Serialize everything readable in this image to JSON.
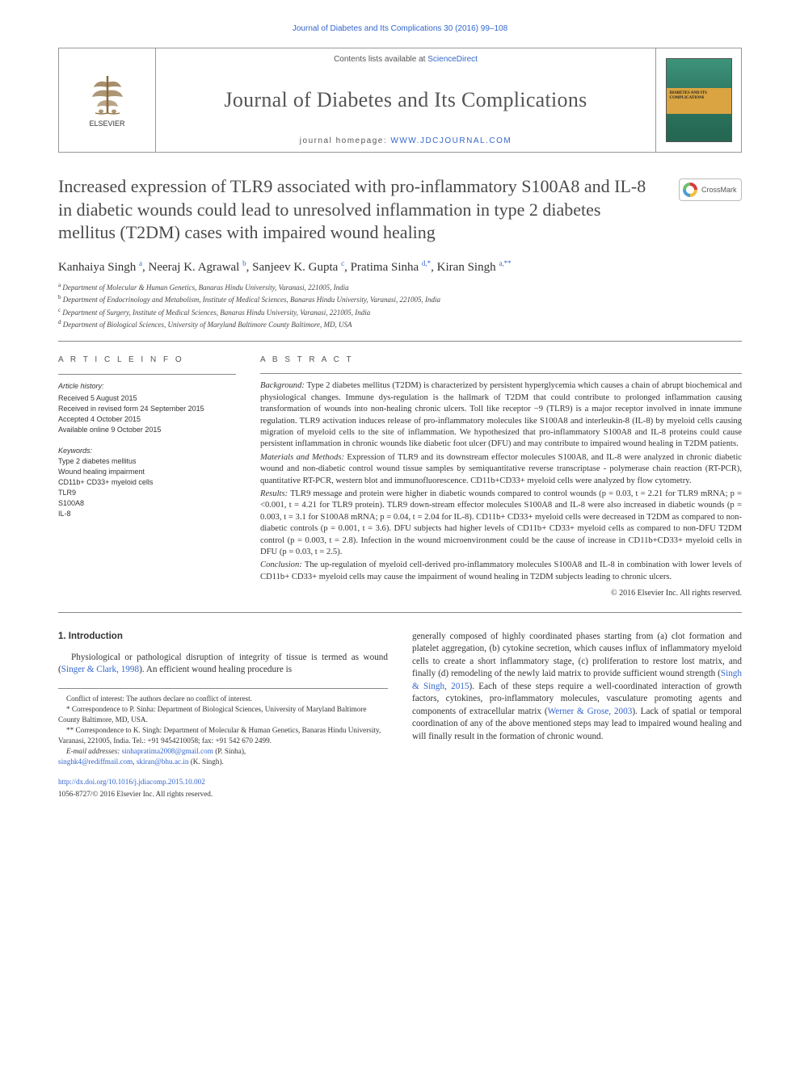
{
  "running_header": "Journal of Diabetes and Its Complications 30 (2016) 99–108",
  "masthead": {
    "contents_prefix": "Contents lists available at ",
    "contents_link": "ScienceDirect",
    "journal_name": "Journal of Diabetes and Its Complications",
    "homepage_prefix": "journal homepage: ",
    "homepage_link": "WWW.JDCJOURNAL.COM",
    "publisher": "ELSEVIER",
    "cover_title": "DIABETES AND ITS COMPLICATIONS"
  },
  "colors": {
    "link": "#3366cc",
    "text": "#333333",
    "title": "#4a4a4a",
    "rule": "#888888",
    "cover_bg_top": "#3d947a",
    "cover_band": "#d9a441"
  },
  "typography": {
    "body_font": "Georgia serif",
    "title_fontsize_pt": 17,
    "journal_name_fontsize_pt": 20,
    "abstract_fontsize_pt": 8,
    "body_fontsize_pt": 8.5
  },
  "crossmark_label": "CrossMark",
  "article": {
    "title": "Increased expression of TLR9 associated with pro-inflammatory S100A8 and IL-8 in diabetic wounds could lead to unresolved inflammation in type 2 diabetes mellitus (T2DM) cases with impaired wound healing",
    "authors_html": "Kanhaiya Singh <sup>a</sup>, Neeraj K. Agrawal <sup>b</sup>, Sanjeev K. Gupta <sup>c</sup>, Pratima Sinha <sup>d,*</sup>, Kiran Singh <sup>a,**</sup>",
    "affiliations": [
      {
        "tag": "a",
        "text": "Department of Molecular & Human Genetics, Banaras Hindu University, Varanasi, 221005, India"
      },
      {
        "tag": "b",
        "text": "Department of Endocrinology and Metabolism, Institute of Medical Sciences, Banaras Hindu University, Varanasi, 221005, India"
      },
      {
        "tag": "c",
        "text": "Department of Surgery, Institute of Medical Sciences, Banaras Hindu University, Varanasi, 221005, India"
      },
      {
        "tag": "d",
        "text": "Department of Biological Sciences, University of Maryland Baltimore County Baltimore, MD, USA"
      }
    ]
  },
  "article_info": {
    "header": "A R T I C L E   I N F O",
    "history_label": "Article history:",
    "history": [
      "Received 5 August 2015",
      "Received in revised form 24 September 2015",
      "Accepted 4 October 2015",
      "Available online 9 October 2015"
    ],
    "keywords_label": "Keywords:",
    "keywords": [
      "Type 2 diabetes mellitus",
      "Wound healing impairment",
      "CD11b+ CD33+ myeloid cells",
      "TLR9",
      "S100A8",
      "IL-8"
    ]
  },
  "abstract": {
    "header": "A B S T R A C T",
    "background_label": "Background:",
    "background": "Type 2 diabetes mellitus (T2DM) is characterized by persistent hyperglycemia which causes a chain of abrupt biochemical and physiological changes. Immune dys-regulation is the hallmark of T2DM that could contribute to prolonged inflammation causing transformation of wounds into non-healing chronic ulcers. Toll like receptor −9 (TLR9) is a major receptor involved in innate immune regulation. TLR9 activation induces release of pro-inflammatory molecules like S100A8 and interleukin-8 (IL-8) by myeloid cells causing migration of myeloid cells to the site of inflammation. We hypothesized that pro-inflammatory S100A8 and IL-8 proteins could cause persistent inflammation in chronic wounds like diabetic foot ulcer (DFU) and may contribute to impaired wound healing in T2DM patients.",
    "methods_label": "Materials and Methods:",
    "methods": "Expression of TLR9 and its downstream effector molecules S100A8, and IL-8 were analyzed in chronic diabetic wound and non-diabetic control wound tissue samples by semiquantitative reverse transcriptase - polymerase chain reaction (RT-PCR), quantitative RT-PCR, western blot and immunofluorescence. CD11b+CD33+ myeloid cells were analyzed by flow cytometry.",
    "results_label": "Results:",
    "results": "TLR9 message and protein were higher in diabetic wounds compared to control wounds (p = 0.03, t = 2.21 for TLR9 mRNA; p = <0.001, t = 4.21 for TLR9 protein). TLR9 down-stream effector molecules S100A8 and IL-8 were also increased in diabetic wounds (p = 0.003, t = 3.1 for S100A8 mRNA; p = 0.04, t = 2.04 for IL-8). CD11b+ CD33+ myeloid cells were decreased in T2DM as compared to non-diabetic controls (p = 0.001, t = 3.6). DFU subjects had higher levels of CD11b+ CD33+ myeloid cells as compared to non-DFU T2DM control (p = 0.003, t = 2.8). Infection in the wound microenvironment could be the cause of increase in CD11b+CD33+ myeloid cells in DFU (p = 0.03, t = 2.5).",
    "conclusion_label": "Conclusion:",
    "conclusion": "The up-regulation of myeloid cell-derived pro-inflammatory molecules S100A8 and IL-8 in combination with lower levels of CD11b+ CD33+ myeloid cells may cause the impairment of wound healing in T2DM subjects leading to chronic ulcers.",
    "copyright": "© 2016 Elsevier Inc. All rights reserved."
  },
  "intro": {
    "heading": "1. Introduction",
    "p1_pre": "Physiological or pathological disruption of integrity of tissue is termed as wound (",
    "p1_cite": "Singer & Clark, 1998",
    "p1_post": "). An efficient wound healing procedure is",
    "p2_pre": "generally composed of highly coordinated phases starting from (a) clot formation and platelet aggregation, (b) cytokine secretion, which causes influx of inflammatory myeloid cells to create a short inflammatory stage, (c) proliferation to restore lost matrix, and finally (d) remodeling of the newly laid matrix to provide sufficient wound strength (",
    "p2_cite": "Singh & Singh, 2015",
    "p2_mid": "). Each of these steps require a well-coordinated interaction of growth factors, cytokines, pro-inflammatory molecules, vasculature promoting agents and components of extracellular matrix (",
    "p2_cite2": "Werner & Grose, 2003",
    "p2_post": "). Lack of spatial or temporal coordination of any of the above mentioned steps may lead to impaired wound healing and will finally result in the formation of chronic wound."
  },
  "footnotes": {
    "coi": "Conflict of interest: The authors declare no conflict of interest.",
    "corr1": "* Correspondence to P. Sinha: Department of Biological Sciences, University of Maryland Baltimore County Baltimore, MD, USA.",
    "corr2": "** Correspondence to K. Singh: Department of Molecular & Human Genetics, Banaras Hindu University, Varanasi, 221005, India. Tel.: +91 9454210058; fax: +91 542 670 2499.",
    "email_label": "E-mail addresses:",
    "email1": "sinhapratima2008@gmail.com",
    "email1_who": "(P. Sinha),",
    "email2a": "singhk4@rediffmail.com",
    "email2b": "skiran@bhu.ac.in",
    "email2_who": "(K. Singh)."
  },
  "doi": {
    "url": "http://dx.doi.org/10.1016/j.jdiacomp.2015.10.002",
    "issn_copy": "1056-8727/© 2016 Elsevier Inc. All rights reserved."
  }
}
